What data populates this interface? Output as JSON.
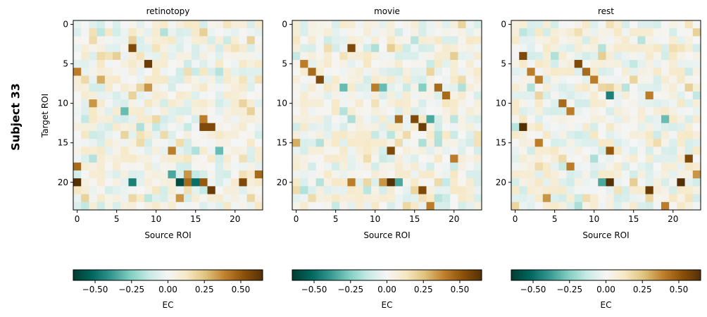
{
  "figure": {
    "row_label": "Subject 33"
  },
  "chart_data": {
    "type": "heatmap",
    "n_roi": 24,
    "colormap": "BrBG_r",
    "color_range": [
      -0.65,
      0.65
    ],
    "colorbar_label": "EC",
    "colorbar_ticks": [
      -0.5,
      -0.25,
      0.0,
      0.25,
      0.5
    ],
    "colorbar_tick_labels": [
      "−0.50",
      "−0.25",
      "0.00",
      "0.25",
      "0.50"
    ],
    "xlabel": "Source ROI",
    "ylabel": "Target ROI",
    "x_ticks": [
      0,
      5,
      10,
      15,
      20
    ],
    "y_ticks": [
      0,
      5,
      10,
      15,
      20
    ],
    "panels": [
      {
        "title": "retinotopy",
        "strong_cells": [
          {
            "target": 3,
            "source": 7,
            "value": 0.55
          },
          {
            "target": 5,
            "source": 9,
            "value": 0.6
          },
          {
            "target": 6,
            "source": 0,
            "value": 0.4
          },
          {
            "target": 7,
            "source": 3,
            "value": 0.3
          },
          {
            "target": 8,
            "source": 9,
            "value": 0.35
          },
          {
            "target": 10,
            "source": 2,
            "value": 0.35
          },
          {
            "target": 11,
            "source": 6,
            "value": -0.3
          },
          {
            "target": 12,
            "source": 16,
            "value": 0.4
          },
          {
            "target": 13,
            "source": 16,
            "value": 0.55
          },
          {
            "target": 13,
            "source": 17,
            "value": 0.55
          },
          {
            "target": 16,
            "source": 12,
            "value": 0.4
          },
          {
            "target": 16,
            "source": 18,
            "value": -0.3
          },
          {
            "target": 18,
            "source": 0,
            "value": 0.45
          },
          {
            "target": 19,
            "source": 12,
            "value": -0.35
          },
          {
            "target": 19,
            "source": 23,
            "value": 0.45
          },
          {
            "target": 20,
            "source": 0,
            "value": 0.65
          },
          {
            "target": 20,
            "source": 7,
            "value": -0.45
          },
          {
            "target": 20,
            "source": 13,
            "value": -0.6
          },
          {
            "target": 20,
            "source": 14,
            "value": 0.45
          },
          {
            "target": 20,
            "source": 15,
            "value": -0.5
          },
          {
            "target": 20,
            "source": 16,
            "value": 0.5
          },
          {
            "target": 20,
            "source": 21,
            "value": 0.55
          },
          {
            "target": 21,
            "source": 17,
            "value": 0.6
          },
          {
            "target": 22,
            "source": 13,
            "value": 0.35
          },
          {
            "target": 19,
            "source": 14,
            "value": 0.35
          }
        ]
      },
      {
        "title": "movie",
        "strong_cells": [
          {
            "target": 3,
            "source": 7,
            "value": 0.55
          },
          {
            "target": 5,
            "source": 1,
            "value": 0.4
          },
          {
            "target": 6,
            "source": 2,
            "value": 0.45
          },
          {
            "target": 7,
            "source": 3,
            "value": 0.55
          },
          {
            "target": 8,
            "source": 6,
            "value": -0.3
          },
          {
            "target": 8,
            "source": 10,
            "value": 0.4
          },
          {
            "target": 8,
            "source": 11,
            "value": -0.3
          },
          {
            "target": 8,
            "source": 16,
            "value": -0.25
          },
          {
            "target": 8,
            "source": 18,
            "value": 0.45
          },
          {
            "target": 9,
            "source": 19,
            "value": 0.45
          },
          {
            "target": 12,
            "source": 13,
            "value": 0.45
          },
          {
            "target": 12,
            "source": 15,
            "value": 0.55
          },
          {
            "target": 12,
            "source": 17,
            "value": -0.35
          },
          {
            "target": 13,
            "source": 16,
            "value": 0.6
          },
          {
            "target": 16,
            "source": 12,
            "value": 0.55
          },
          {
            "target": 17,
            "source": 20,
            "value": 0.4
          },
          {
            "target": 20,
            "source": 7,
            "value": 0.4
          },
          {
            "target": 20,
            "source": 11,
            "value": 0.35
          },
          {
            "target": 20,
            "source": 12,
            "value": 0.65
          },
          {
            "target": 20,
            "source": 13,
            "value": -0.35
          },
          {
            "target": 21,
            "source": 16,
            "value": 0.55
          },
          {
            "target": 23,
            "source": 17,
            "value": 0.4
          },
          {
            "target": 15,
            "source": 0,
            "value": 0.3
          }
        ]
      },
      {
        "title": "rest",
        "strong_cells": [
          {
            "target": 4,
            "source": 1,
            "value": 0.55
          },
          {
            "target": 5,
            "source": 8,
            "value": 0.55
          },
          {
            "target": 6,
            "source": 2,
            "value": 0.4
          },
          {
            "target": 7,
            "source": 3,
            "value": 0.4
          },
          {
            "target": 6,
            "source": 9,
            "value": 0.45
          },
          {
            "target": 7,
            "source": 10,
            "value": 0.4
          },
          {
            "target": 9,
            "source": 12,
            "value": -0.45
          },
          {
            "target": 9,
            "source": 17,
            "value": 0.4
          },
          {
            "target": 10,
            "source": 6,
            "value": 0.45
          },
          {
            "target": 11,
            "source": 7,
            "value": 0.4
          },
          {
            "target": 13,
            "source": 1,
            "value": 0.65
          },
          {
            "target": 15,
            "source": 3,
            "value": 0.4
          },
          {
            "target": 16,
            "source": 12,
            "value": 0.5
          },
          {
            "target": 17,
            "source": 22,
            "value": 0.55
          },
          {
            "target": 18,
            "source": 7,
            "value": 0.4
          },
          {
            "target": 20,
            "source": 12,
            "value": 0.65
          },
          {
            "target": 20,
            "source": 11,
            "value": -0.35
          },
          {
            "target": 20,
            "source": 21,
            "value": 0.65
          },
          {
            "target": 21,
            "source": 17,
            "value": 0.6
          },
          {
            "target": 22,
            "source": 4,
            "value": 0.35
          },
          {
            "target": 23,
            "source": 19,
            "value": 0.4
          },
          {
            "target": 19,
            "source": 23,
            "value": 0.35
          },
          {
            "target": 12,
            "source": 19,
            "value": -0.3
          }
        ]
      }
    ]
  }
}
